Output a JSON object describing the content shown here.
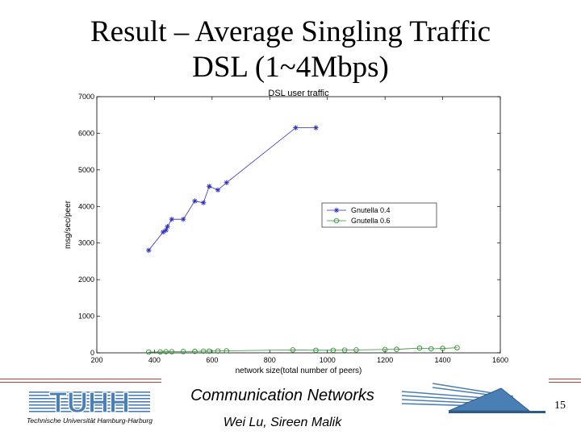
{
  "slide": {
    "title_line1": "Result – Average Singling Traffic",
    "title_line2": "DSL (1~4Mbps)",
    "footer_title": "Communication Networks",
    "footer_authors": "Wei Lu, Sireen Malik",
    "page_number": "15"
  },
  "logo": {
    "text": "TUHH",
    "subtitle": "Technische Universität Hamburg-Harburg",
    "color": "#4a7fb5"
  },
  "chart_data": {
    "type": "line",
    "title": "DSL user traffic",
    "xlabel": "network size(total number of peers)",
    "ylabel": "msg/sec/peer",
    "xlim": [
      200,
      1600
    ],
    "ylim": [
      0,
      7000
    ],
    "x_ticks": [
      200,
      400,
      600,
      800,
      1000,
      1200,
      1400,
      1600
    ],
    "y_ticks": [
      0,
      1000,
      2000,
      3000,
      4000,
      5000,
      6000,
      7000
    ],
    "legend_position": "right-middle",
    "grid": false,
    "series": [
      {
        "name": "Gnutella 0.4",
        "color": "#2b2bbf",
        "marker": "star",
        "points": [
          [
            380,
            2800
          ],
          [
            430,
            3300
          ],
          [
            440,
            3350
          ],
          [
            445,
            3450
          ],
          [
            460,
            3650
          ],
          [
            500,
            3650
          ],
          [
            540,
            4150
          ],
          [
            570,
            4100
          ],
          [
            590,
            4550
          ],
          [
            620,
            4450
          ],
          [
            650,
            4650
          ],
          [
            890,
            6150
          ],
          [
            960,
            6150
          ]
        ]
      },
      {
        "name": "Gnutella 0.6",
        "color": "#2f8f2f",
        "marker": "circle",
        "points": [
          [
            380,
            20
          ],
          [
            420,
            25
          ],
          [
            440,
            30
          ],
          [
            460,
            30
          ],
          [
            500,
            35
          ],
          [
            540,
            40
          ],
          [
            570,
            45
          ],
          [
            590,
            45
          ],
          [
            620,
            50
          ],
          [
            650,
            55
          ],
          [
            880,
            80
          ],
          [
            960,
            70
          ],
          [
            1020,
            70
          ],
          [
            1060,
            75
          ],
          [
            1100,
            80
          ],
          [
            1200,
            90
          ],
          [
            1240,
            95
          ],
          [
            1320,
            130
          ],
          [
            1360,
            110
          ],
          [
            1400,
            120
          ],
          [
            1450,
            140
          ]
        ]
      }
    ]
  }
}
